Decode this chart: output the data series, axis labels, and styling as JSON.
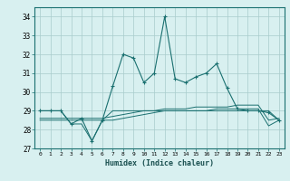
{
  "xlabel": "Humidex (Indice chaleur)",
  "ylabel": "",
  "x": [
    0,
    1,
    2,
    3,
    4,
    5,
    6,
    7,
    8,
    9,
    10,
    11,
    12,
    13,
    14,
    15,
    16,
    17,
    18,
    19,
    20,
    21,
    22,
    23
  ],
  "line1": [
    29.0,
    29.0,
    29.0,
    28.3,
    28.6,
    27.4,
    28.5,
    30.3,
    32.0,
    31.8,
    30.5,
    31.0,
    34.0,
    30.7,
    30.5,
    30.8,
    31.0,
    31.5,
    30.2,
    29.1,
    29.0,
    29.0,
    28.9,
    28.5
  ],
  "line2": [
    29.0,
    29.0,
    29.0,
    28.3,
    28.3,
    27.4,
    28.5,
    29.0,
    29.0,
    29.0,
    29.0,
    29.0,
    29.0,
    29.0,
    29.0,
    29.0,
    29.0,
    29.0,
    29.0,
    29.0,
    29.0,
    29.0,
    29.0,
    28.5
  ],
  "line3": [
    28.5,
    28.5,
    28.5,
    28.5,
    28.5,
    28.5,
    28.5,
    28.5,
    28.6,
    28.7,
    28.8,
    28.9,
    29.0,
    29.0,
    29.0,
    29.0,
    29.0,
    29.1,
    29.1,
    29.1,
    29.1,
    29.1,
    28.2,
    28.5
  ],
  "line4": [
    28.6,
    28.6,
    28.6,
    28.6,
    28.6,
    28.6,
    28.6,
    28.7,
    28.8,
    28.9,
    29.0,
    29.0,
    29.1,
    29.1,
    29.1,
    29.2,
    29.2,
    29.2,
    29.2,
    29.3,
    29.3,
    29.3,
    28.5,
    28.6
  ],
  "line_color": "#1a7070",
  "bg_color": "#d8f0f0",
  "grid_color": "#a8cccc",
  "ylim": [
    27,
    34.5
  ],
  "yticks": [
    27,
    28,
    29,
    30,
    31,
    32,
    33,
    34
  ],
  "xticks": [
    0,
    1,
    2,
    3,
    4,
    5,
    6,
    7,
    8,
    9,
    10,
    11,
    12,
    13,
    14,
    15,
    16,
    17,
    18,
    19,
    20,
    21,
    22,
    23
  ]
}
